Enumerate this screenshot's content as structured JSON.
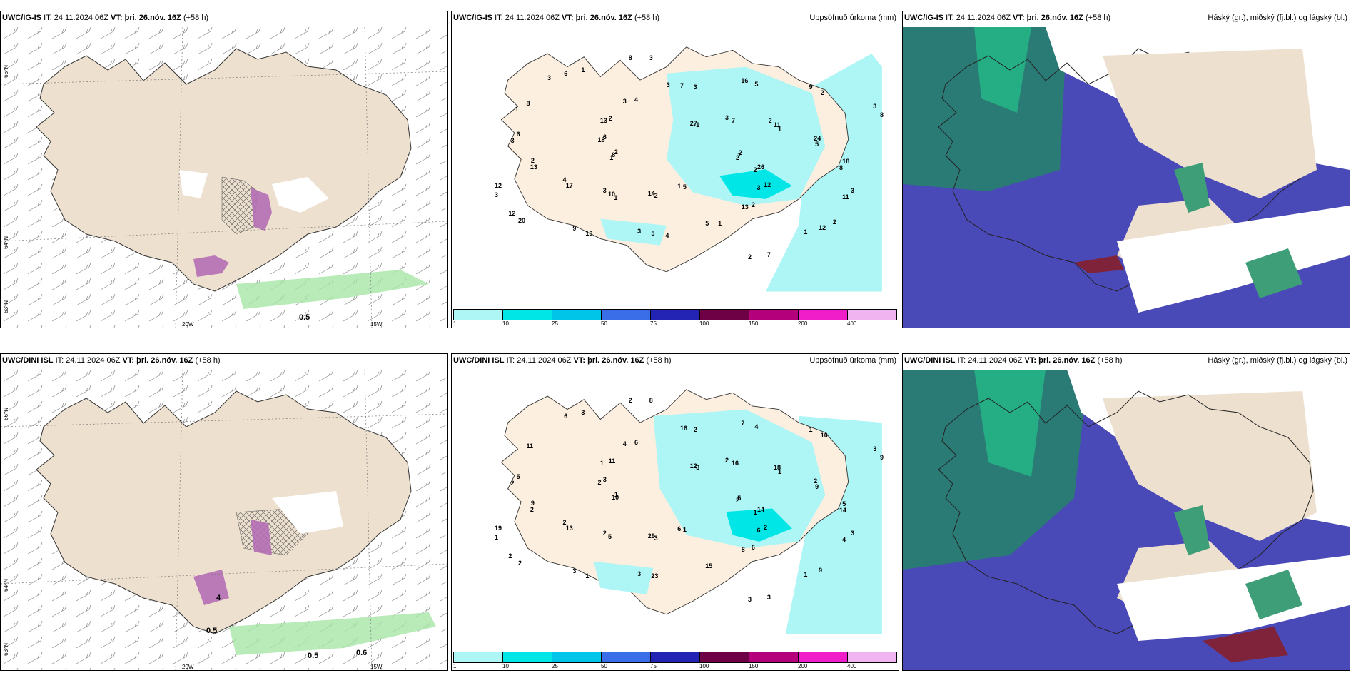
{
  "rows": [
    {
      "model": "UWC/IG-IS",
      "it_label": "IT: 24.11.2024 06Z",
      "vt_label": "VT: þri. 26.nóv. 16Z",
      "lead": "(+58 h)"
    },
    {
      "model": "UWC/DINI ISL",
      "it_label": "IT: 24.11.2024 06Z",
      "vt_label": "VT: þri. 26.nóv. 16Z",
      "lead": "(+58 h)"
    }
  ],
  "products": {
    "precip_title": "Uppsöfnuð úrkoma (mm)",
    "cloud_title": "Háský (gr.), miðský (fj.bl.) og lágský (bl.)"
  },
  "axis_labels": {
    "lat_66": "66°N",
    "lat_64": "64°N",
    "lat_63": "63°N",
    "lon_20w": "20W",
    "lon_15w": "15W"
  },
  "wind_panel_values": {
    "top": [
      "0.5"
    ],
    "bottom": [
      "0.5",
      "0.6",
      "0.5",
      "4"
    ]
  },
  "colorbar": {
    "ticks": [
      "1",
      "10",
      "25",
      "50",
      "75",
      "100",
      "150",
      "200",
      "400"
    ],
    "colors": [
      "#aef5f5",
      "#00e6e6",
      "#00c4e8",
      "#3a6ee8",
      "#2323b4",
      "#6e0046",
      "#b4007a",
      "#f01ec8",
      "#f0b4f0"
    ]
  },
  "precip_top_values": [
    "2",
    "3",
    "3",
    "1",
    "2",
    "1",
    "3",
    "1",
    "2",
    "4",
    "5",
    "2",
    "6",
    "5",
    "9",
    "3",
    "3",
    "2",
    "2",
    "1",
    "2",
    "8",
    "12",
    "1",
    "13",
    "6",
    "8",
    "14",
    "4",
    "11",
    "12",
    "7",
    "5",
    "8",
    "7",
    "10",
    "7",
    "12",
    "8",
    "11",
    "5",
    "6",
    "26",
    "17",
    "16",
    "7",
    "18",
    "24",
    "10",
    "8",
    "12",
    "13",
    "9",
    "5",
    "13",
    "18",
    "20",
    "27",
    "2",
    "3",
    "3",
    "2",
    "3",
    "3",
    "3",
    "3",
    "1",
    "1",
    "2",
    "1",
    "3",
    "2",
    "1",
    "2",
    "4",
    "3"
  ],
  "precip_bottom_values": [
    "2",
    "2",
    "2",
    "1",
    "1",
    "1",
    "3",
    "3",
    "1",
    "2",
    "4",
    "3",
    "3",
    "9",
    "3",
    "8",
    "6",
    "9",
    "10",
    "6",
    "11",
    "14",
    "2",
    "3",
    "8",
    "5",
    "9",
    "29",
    "6",
    "4",
    "19",
    "16",
    "15",
    "11",
    "5",
    "5",
    "16",
    "9",
    "10",
    "18",
    "23",
    "6",
    "14",
    "13",
    "7",
    "3",
    "2",
    "2",
    "1",
    "2",
    "2",
    "2",
    "1",
    "1",
    "1",
    "5",
    "2",
    "12",
    "6",
    "2",
    "3",
    "3",
    "4",
    "3",
    "1",
    "2"
  ],
  "colors": {
    "land": "#ede0cf",
    "land_precip": "#fcefdf",
    "sea": "#ffffff",
    "precip_light": "#aef5f5",
    "precip_mid": "#00e6e6",
    "high_cloud": "#3d9e78",
    "mid_cloud": "#4a49b8",
    "low_cloud": "#23c48a",
    "snow_purple": "#b46eb4",
    "green_field": "#a8e6a8"
  }
}
